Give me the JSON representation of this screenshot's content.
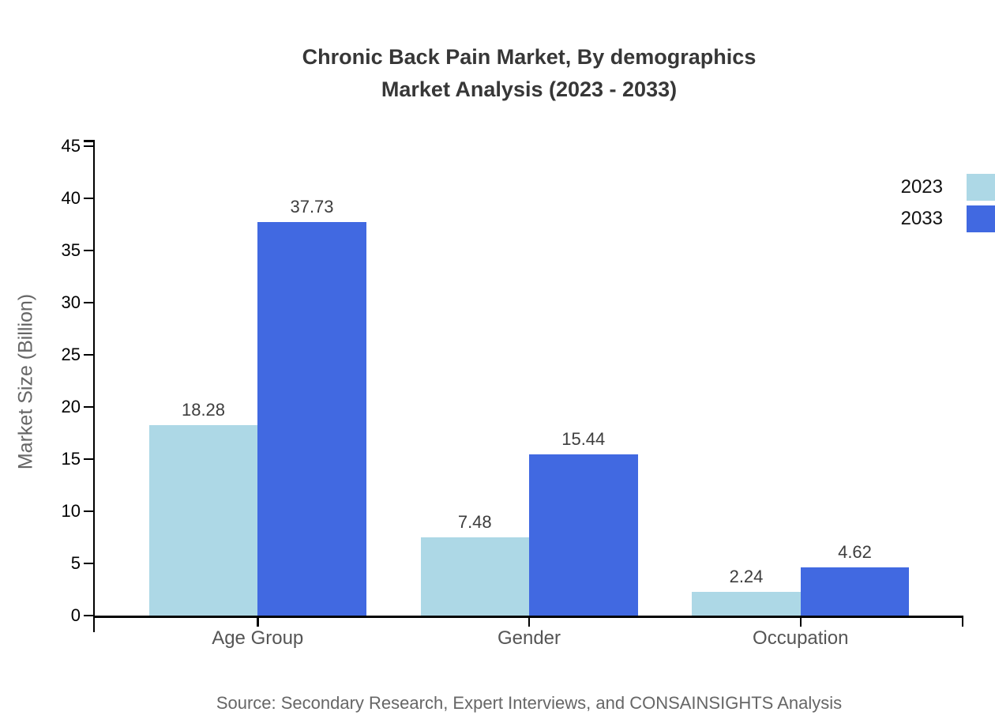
{
  "title": {
    "line1": "Chronic Back Pain Market, By demographics",
    "line2": "Market Analysis (2023 - 2033)"
  },
  "source": "Source: Secondary Research, Expert Interviews, and CONSAINSIGHTS Analysis",
  "chart_data": {
    "type": "bar",
    "title": "Chronic Back Pain Market, By demographics Market Analysis (2023 - 2033)",
    "categories": [
      "Age Group",
      "Gender",
      "Occupation"
    ],
    "series": [
      {
        "name": "2023",
        "color": "#ADD8E6",
        "values": [
          18.28,
          7.48,
          2.24
        ]
      },
      {
        "name": "2033",
        "color": "#4169E1",
        "values": [
          37.73,
          15.44,
          4.62
        ]
      }
    ],
    "xlabel": "",
    "ylabel": "Market Size (Billion)",
    "ylim": [
      0,
      45
    ],
    "ytick_step": 5,
    "yticks": [
      0,
      5,
      10,
      15,
      20,
      25,
      30,
      35,
      40,
      45
    ],
    "grid": false,
    "value_labels": true,
    "legend_position": "top-right",
    "text_colors": {
      "title": "#373737",
      "tick_labels": "#000000",
      "category_labels": "#555555",
      "value_labels": "#3d3d3d",
      "axis_title": "#666666",
      "source": "#666666"
    }
  }
}
